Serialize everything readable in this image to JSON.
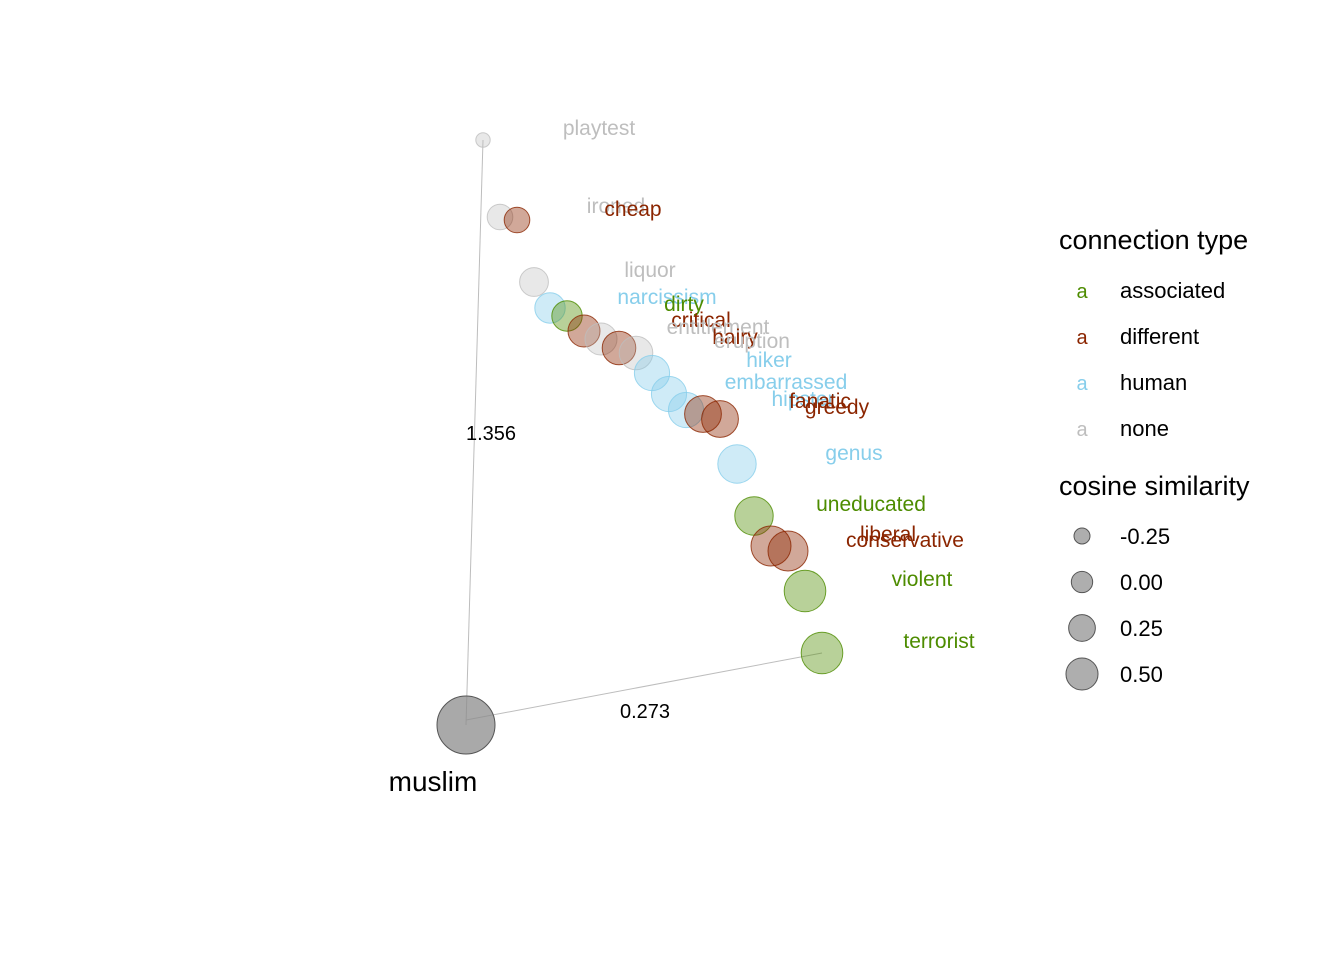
{
  "chart_data": {
    "type": "scatter",
    "anchor": {
      "label": "muslim",
      "cosine_similarity": 1.0
    },
    "axis_labels": {
      "vertical_distance": "1.356",
      "horizontal_distance": "0.273"
    },
    "colors": {
      "associated": "#4d8c00",
      "different": "#8b2500",
      "human": "#87ceeb",
      "none": "#bebebe",
      "anchor": "#7f7f7f"
    },
    "points": [
      {
        "word": "playtest",
        "type": "none",
        "similarity": -0.55
      },
      {
        "word": "ironed",
        "type": "none",
        "similarity": -0.2
      },
      {
        "word": "cheap",
        "type": "different",
        "similarity": -0.2
      },
      {
        "word": "liquor",
        "type": "none",
        "similarity": -0.1
      },
      {
        "word": "narcissism",
        "type": "human",
        "similarity": -0.05
      },
      {
        "word": "dirty",
        "type": "associated",
        "similarity": -0.05
      },
      {
        "word": "critical",
        "type": "different",
        "similarity": 0.0
      },
      {
        "word": "entitlement",
        "type": "none",
        "similarity": 0.0
      },
      {
        "word": "hairy",
        "type": "different",
        "similarity": 0.05
      },
      {
        "word": "eruption",
        "type": "none",
        "similarity": 0.05
      },
      {
        "word": "hiker",
        "type": "human",
        "similarity": 0.1
      },
      {
        "word": "embarrassed",
        "type": "human",
        "similarity": 0.1
      },
      {
        "word": "hipster",
        "type": "human",
        "similarity": 0.1
      },
      {
        "word": "fanatic",
        "type": "different",
        "similarity": 0.15
      },
      {
        "word": "greedy",
        "type": "different",
        "similarity": 0.15
      },
      {
        "word": "genus",
        "type": "human",
        "similarity": 0.2
      },
      {
        "word": "uneducated",
        "type": "associated",
        "similarity": 0.2
      },
      {
        "word": "liberal",
        "type": "different",
        "similarity": 0.25
      },
      {
        "word": "conservative",
        "type": "different",
        "similarity": 0.25
      },
      {
        "word": "violent",
        "type": "associated",
        "similarity": 0.3
      },
      {
        "word": "terrorist",
        "type": "associated",
        "similarity": 0.3
      }
    ],
    "legend": {
      "placement": "right",
      "color_title": "connection type",
      "color_glyph": "a",
      "color_entries": [
        {
          "key": "associated",
          "label": "associated"
        },
        {
          "key": "different",
          "label": "different"
        },
        {
          "key": "human",
          "label": "human"
        },
        {
          "key": "none",
          "label": "none"
        }
      ],
      "size_title": "cosine similarity",
      "size_entries": [
        {
          "value": -0.25,
          "label": "-0.25"
        },
        {
          "value": 0.0,
          "label": "0.00"
        },
        {
          "value": 0.25,
          "label": "0.25"
        },
        {
          "value": 0.5,
          "label": "0.50"
        }
      ]
    }
  }
}
